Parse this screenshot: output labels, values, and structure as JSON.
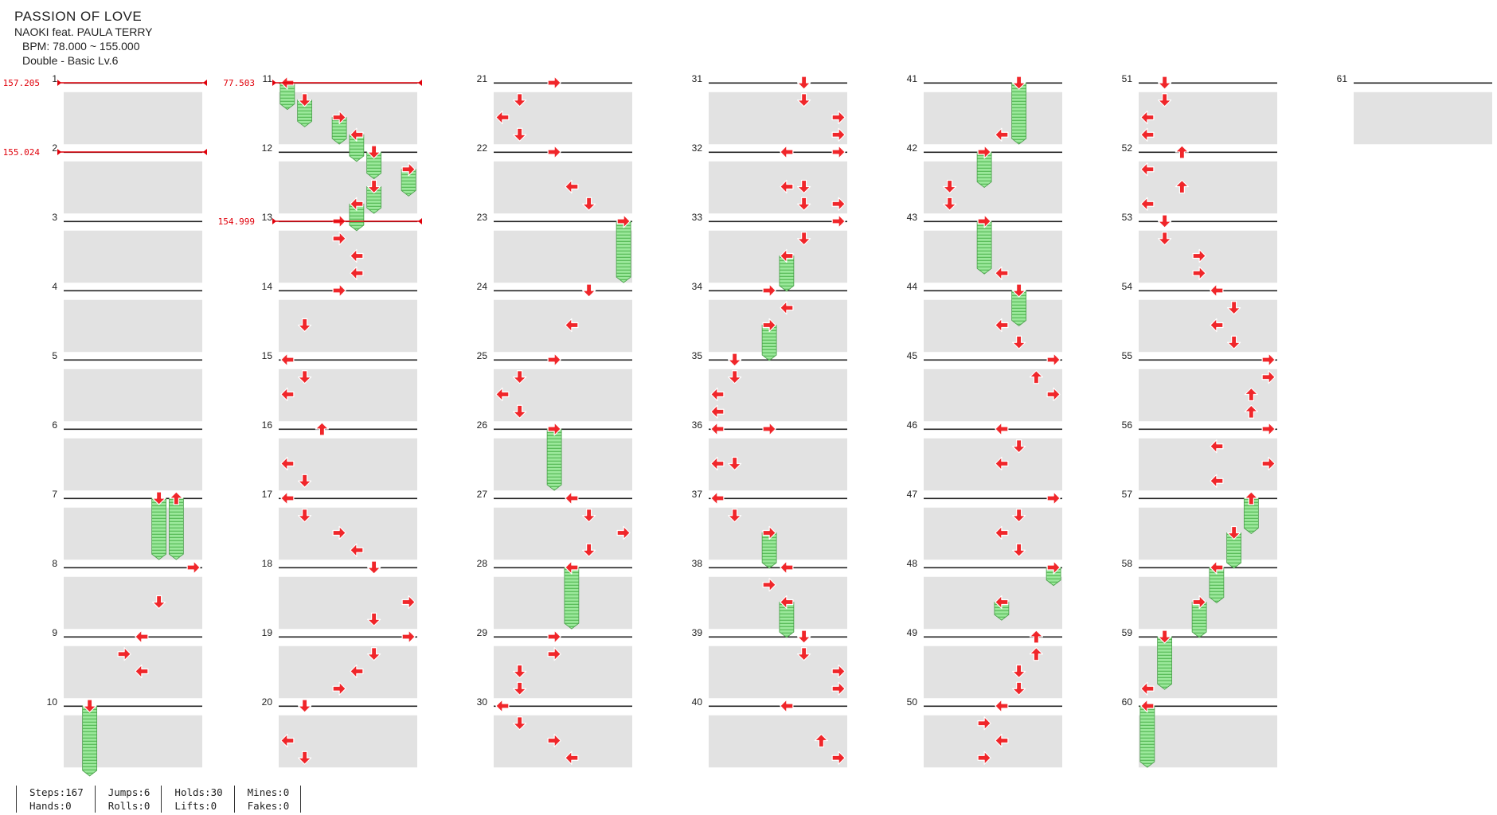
{
  "song": {
    "title": "PASSION OF LOVE",
    "artist": "NAOKI feat. PAULA TERRY",
    "bpm": "BPM: 78.000 ~ 155.000",
    "chart": "Double - Basic  Lv.6"
  },
  "colors": {
    "arrow": "#f0262a",
    "hold": "#8ee88e",
    "bpm_line": "#e0000a",
    "lane_shade": "#e2e2e2"
  },
  "bpm_changes": [
    {
      "measure": 1,
      "label": "157.205"
    },
    {
      "measure": 2,
      "label": "155.024"
    },
    {
      "measure": 11,
      "label": "77.503"
    },
    {
      "measure": 13,
      "label": "154.999"
    }
  ],
  "notes": [
    {
      "m": 7,
      "r": 0,
      "c": 5,
      "d": "D",
      "len": 0.875
    },
    {
      "m": 7,
      "r": 0,
      "c": 6,
      "d": "U",
      "len": 0.875
    },
    {
      "m": 8,
      "r": 0,
      "c": 7,
      "d": "R"
    },
    {
      "m": 8,
      "r": 0.5,
      "c": 5,
      "d": "D"
    },
    {
      "m": 9,
      "r": 0,
      "c": 4,
      "d": "L"
    },
    {
      "m": 9,
      "r": 0.25,
      "c": 3,
      "d": "R"
    },
    {
      "m": 9,
      "r": 0.5,
      "c": 4,
      "d": "L"
    },
    {
      "m": 10,
      "r": 0,
      "c": 1,
      "d": "D",
      "len": 1
    },
    {
      "m": 11,
      "r": 0,
      "c": 0,
      "d": "L",
      "len": 0.375
    },
    {
      "m": 11,
      "r": 0.25,
      "c": 1,
      "d": "D",
      "len": 0.375
    },
    {
      "m": 11,
      "r": 0.5,
      "c": 3,
      "d": "R",
      "len": 0.375
    },
    {
      "m": 11,
      "r": 0.75,
      "c": 4,
      "d": "L",
      "len": 0.375
    },
    {
      "m": 12,
      "r": 0,
      "c": 5,
      "d": "D",
      "len": 0.375
    },
    {
      "m": 12,
      "r": 0.25,
      "c": 7,
      "d": "R",
      "len": 0.375
    },
    {
      "m": 12,
      "r": 0.5,
      "c": 5,
      "d": "D",
      "len": 0.375
    },
    {
      "m": 12,
      "r": 0.75,
      "c": 4,
      "d": "L",
      "len": 0.375
    },
    {
      "m": 13,
      "r": 0,
      "c": 3,
      "d": "R"
    },
    {
      "m": 13,
      "r": 0.25,
      "c": 3,
      "d": "R"
    },
    {
      "m": 13,
      "r": 0.5,
      "c": 4,
      "d": "L"
    },
    {
      "m": 13,
      "r": 0.75,
      "c": 4,
      "d": "L"
    },
    {
      "m": 14,
      "r": 0,
      "c": 3,
      "d": "R"
    },
    {
      "m": 14,
      "r": 0.5,
      "c": 1,
      "d": "D"
    },
    {
      "m": 15,
      "r": 0,
      "c": 0,
      "d": "L"
    },
    {
      "m": 15,
      "r": 0.25,
      "c": 1,
      "d": "D"
    },
    {
      "m": 15,
      "r": 0.5,
      "c": 0,
      "d": "L"
    },
    {
      "m": 16,
      "r": 0,
      "c": 2,
      "d": "U"
    },
    {
      "m": 16,
      "r": 0.5,
      "c": 0,
      "d": "L"
    },
    {
      "m": 16,
      "r": 0.75,
      "c": 1,
      "d": "D"
    },
    {
      "m": 17,
      "r": 0,
      "c": 0,
      "d": "L"
    },
    {
      "m": 17,
      "r": 0.25,
      "c": 1,
      "d": "D"
    },
    {
      "m": 17,
      "r": 0.5,
      "c": 3,
      "d": "R"
    },
    {
      "m": 17,
      "r": 0.75,
      "c": 4,
      "d": "L"
    },
    {
      "m": 18,
      "r": 0,
      "c": 5,
      "d": "D"
    },
    {
      "m": 18,
      "r": 0.5,
      "c": 7,
      "d": "R"
    },
    {
      "m": 18,
      "r": 0.75,
      "c": 5,
      "d": "D"
    },
    {
      "m": 19,
      "r": 0,
      "c": 7,
      "d": "R"
    },
    {
      "m": 19,
      "r": 0.25,
      "c": 5,
      "d": "D"
    },
    {
      "m": 19,
      "r": 0.5,
      "c": 4,
      "d": "L"
    },
    {
      "m": 19,
      "r": 0.75,
      "c": 3,
      "d": "R"
    },
    {
      "m": 20,
      "r": 0,
      "c": 1,
      "d": "D"
    },
    {
      "m": 20,
      "r": 0.5,
      "c": 0,
      "d": "L"
    },
    {
      "m": 20,
      "r": 0.75,
      "c": 1,
      "d": "D"
    },
    {
      "m": 21,
      "r": 0,
      "c": 3,
      "d": "R"
    },
    {
      "m": 21,
      "r": 0.25,
      "c": 1,
      "d": "D"
    },
    {
      "m": 21,
      "r": 0.5,
      "c": 0,
      "d": "L"
    },
    {
      "m": 21,
      "r": 0.75,
      "c": 1,
      "d": "D"
    },
    {
      "m": 22,
      "r": 0,
      "c": 3,
      "d": "R"
    },
    {
      "m": 22,
      "r": 0.5,
      "c": 4,
      "d": "L"
    },
    {
      "m": 22,
      "r": 0.75,
      "c": 5,
      "d": "D"
    },
    {
      "m": 23,
      "r": 0,
      "c": 7,
      "d": "R",
      "len": 0.875
    },
    {
      "m": 24,
      "r": 0,
      "c": 5,
      "d": "D"
    },
    {
      "m": 24,
      "r": 0.5,
      "c": 4,
      "d": "L"
    },
    {
      "m": 25,
      "r": 0,
      "c": 3,
      "d": "R"
    },
    {
      "m": 25,
      "r": 0.25,
      "c": 1,
      "d": "D"
    },
    {
      "m": 25,
      "r": 0.5,
      "c": 0,
      "d": "L"
    },
    {
      "m": 25,
      "r": 0.75,
      "c": 1,
      "d": "D"
    },
    {
      "m": 26,
      "r": 0,
      "c": 3,
      "d": "R",
      "len": 0.875
    },
    {
      "m": 27,
      "r": 0,
      "c": 4,
      "d": "L"
    },
    {
      "m": 27,
      "r": 0.25,
      "c": 5,
      "d": "D"
    },
    {
      "m": 27,
      "r": 0.5,
      "c": 7,
      "d": "R"
    },
    {
      "m": 27,
      "r": 0.75,
      "c": 5,
      "d": "D"
    },
    {
      "m": 28,
      "r": 0,
      "c": 4,
      "d": "L",
      "len": 0.875
    },
    {
      "m": 29,
      "r": 0,
      "c": 3,
      "d": "R"
    },
    {
      "m": 29,
      "r": 0.25,
      "c": 3,
      "d": "R"
    },
    {
      "m": 29,
      "r": 0.5,
      "c": 1,
      "d": "D"
    },
    {
      "m": 29,
      "r": 0.75,
      "c": 1,
      "d": "D"
    },
    {
      "m": 30,
      "r": 0,
      "c": 0,
      "d": "L"
    },
    {
      "m": 30,
      "r": 0.25,
      "c": 1,
      "d": "D"
    },
    {
      "m": 30,
      "r": 0.5,
      "c": 3,
      "d": "R"
    },
    {
      "m": 30,
      "r": 0.75,
      "c": 4,
      "d": "L"
    },
    {
      "m": 31,
      "r": 0,
      "c": 5,
      "d": "D"
    },
    {
      "m": 31,
      "r": 0.25,
      "c": 5,
      "d": "D"
    },
    {
      "m": 31,
      "r": 0.5,
      "c": 7,
      "d": "R"
    },
    {
      "m": 31,
      "r": 0.75,
      "c": 7,
      "d": "R"
    },
    {
      "m": 32,
      "r": 0,
      "c": 4,
      "d": "L"
    },
    {
      "m": 32,
      "r": 0,
      "c": 7,
      "d": "R"
    },
    {
      "m": 32,
      "r": 0.5,
      "c": 4,
      "d": "L"
    },
    {
      "m": 32,
      "r": 0.5,
      "c": 5,
      "d": "D"
    },
    {
      "m": 32,
      "r": 0.75,
      "c": 5,
      "d": "D"
    },
    {
      "m": 32,
      "r": 0.75,
      "c": 7,
      "d": "R"
    },
    {
      "m": 33,
      "r": 0,
      "c": 7,
      "d": "R"
    },
    {
      "m": 33,
      "r": 0.25,
      "c": 5,
      "d": "D"
    },
    {
      "m": 33,
      "r": 0.5,
      "c": 4,
      "d": "L",
      "len": 0.5
    },
    {
      "m": 34,
      "r": 0,
      "c": 3,
      "d": "R"
    },
    {
      "m": 34,
      "r": 0.25,
      "c": 4,
      "d": "L"
    },
    {
      "m": 34,
      "r": 0.5,
      "c": 3,
      "d": "R",
      "len": 0.5
    },
    {
      "m": 35,
      "r": 0,
      "c": 1,
      "d": "D"
    },
    {
      "m": 35,
      "r": 0.25,
      "c": 1,
      "d": "D"
    },
    {
      "m": 35,
      "r": 0.5,
      "c": 0,
      "d": "L"
    },
    {
      "m": 35,
      "r": 0.75,
      "c": 0,
      "d": "L"
    },
    {
      "m": 36,
      "r": 0,
      "c": 0,
      "d": "L"
    },
    {
      "m": 36,
      "r": 0,
      "c": 3,
      "d": "R"
    },
    {
      "m": 36,
      "r": 0.5,
      "c": 0,
      "d": "L"
    },
    {
      "m": 36,
      "r": 0.5,
      "c": 1,
      "d": "D"
    },
    {
      "m": 37,
      "r": 0,
      "c": 0,
      "d": "L"
    },
    {
      "m": 37,
      "r": 0.25,
      "c": 1,
      "d": "D"
    },
    {
      "m": 37,
      "r": 0.5,
      "c": 3,
      "d": "R",
      "len": 0.5
    },
    {
      "m": 38,
      "r": 0,
      "c": 4,
      "d": "L"
    },
    {
      "m": 38,
      "r": 0.25,
      "c": 3,
      "d": "R"
    },
    {
      "m": 38,
      "r": 0.5,
      "c": 4,
      "d": "L",
      "len": 0.5
    },
    {
      "m": 39,
      "r": 0,
      "c": 5,
      "d": "D"
    },
    {
      "m": 39,
      "r": 0.25,
      "c": 5,
      "d": "D"
    },
    {
      "m": 39,
      "r": 0.5,
      "c": 7,
      "d": "R"
    },
    {
      "m": 39,
      "r": 0.75,
      "c": 7,
      "d": "R"
    },
    {
      "m": 40,
      "r": 0,
      "c": 4,
      "d": "L"
    },
    {
      "m": 40,
      "r": 0.5,
      "c": 6,
      "d": "U"
    },
    {
      "m": 40,
      "r": 0.75,
      "c": 7,
      "d": "R"
    },
    {
      "m": 41,
      "r": 0,
      "c": 5,
      "d": "D",
      "len": 0.875
    },
    {
      "m": 41,
      "r": 0.75,
      "c": 4,
      "d": "L"
    },
    {
      "m": 42,
      "r": 0,
      "c": 3,
      "d": "R",
      "len": 0.5
    },
    {
      "m": 42,
      "r": 0.5,
      "c": 1,
      "d": "D"
    },
    {
      "m": 42,
      "r": 0.75,
      "c": 1,
      "d": "D"
    },
    {
      "m": 43,
      "r": 0,
      "c": 3,
      "d": "R",
      "len": 0.75
    },
    {
      "m": 43,
      "r": 0.75,
      "c": 4,
      "d": "L"
    },
    {
      "m": 44,
      "r": 0,
      "c": 5,
      "d": "D",
      "len": 0.5
    },
    {
      "m": 44,
      "r": 0.5,
      "c": 4,
      "d": "L"
    },
    {
      "m": 44,
      "r": 0.75,
      "c": 5,
      "d": "D"
    },
    {
      "m": 45,
      "r": 0,
      "c": 7,
      "d": "R"
    },
    {
      "m": 45,
      "r": 0.25,
      "c": 6,
      "d": "U"
    },
    {
      "m": 45,
      "r": 0.5,
      "c": 7,
      "d": "R"
    },
    {
      "m": 46,
      "r": 0,
      "c": 4,
      "d": "L"
    },
    {
      "m": 46,
      "r": 0.25,
      "c": 5,
      "d": "D"
    },
    {
      "m": 46,
      "r": 0.5,
      "c": 4,
      "d": "L"
    },
    {
      "m": 47,
      "r": 0,
      "c": 7,
      "d": "R"
    },
    {
      "m": 47,
      "r": 0.25,
      "c": 5,
      "d": "D"
    },
    {
      "m": 47,
      "r": 0.5,
      "c": 4,
      "d": "L"
    },
    {
      "m": 47,
      "r": 0.75,
      "c": 5,
      "d": "D"
    },
    {
      "m": 48,
      "r": 0,
      "c": 7,
      "d": "R",
      "len": 0.25
    },
    {
      "m": 48,
      "r": 0.5,
      "c": 4,
      "d": "L",
      "len": 0.25
    },
    {
      "m": 49,
      "r": 0,
      "c": 6,
      "d": "U"
    },
    {
      "m": 49,
      "r": 0.25,
      "c": 6,
      "d": "U"
    },
    {
      "m": 49,
      "r": 0.5,
      "c": 5,
      "d": "D"
    },
    {
      "m": 49,
      "r": 0.75,
      "c": 5,
      "d": "D"
    },
    {
      "m": 50,
      "r": 0,
      "c": 4,
      "d": "L"
    },
    {
      "m": 50,
      "r": 0.25,
      "c": 3,
      "d": "R"
    },
    {
      "m": 50,
      "r": 0.5,
      "c": 4,
      "d": "L"
    },
    {
      "m": 50,
      "r": 0.75,
      "c": 3,
      "d": "R"
    },
    {
      "m": 51,
      "r": 0,
      "c": 1,
      "d": "D"
    },
    {
      "m": 51,
      "r": 0.25,
      "c": 1,
      "d": "D"
    },
    {
      "m": 51,
      "r": 0.5,
      "c": 0,
      "d": "L"
    },
    {
      "m": 51,
      "r": 0.75,
      "c": 0,
      "d": "L"
    },
    {
      "m": 52,
      "r": 0,
      "c": 2,
      "d": "U"
    },
    {
      "m": 52,
      "r": 0.25,
      "c": 0,
      "d": "L"
    },
    {
      "m": 52,
      "r": 0.5,
      "c": 2,
      "d": "U"
    },
    {
      "m": 52,
      "r": 0.75,
      "c": 0,
      "d": "L"
    },
    {
      "m": 53,
      "r": 0,
      "c": 1,
      "d": "D"
    },
    {
      "m": 53,
      "r": 0.25,
      "c": 1,
      "d": "D"
    },
    {
      "m": 53,
      "r": 0.5,
      "c": 3,
      "d": "R"
    },
    {
      "m": 53,
      "r": 0.75,
      "c": 3,
      "d": "R"
    },
    {
      "m": 54,
      "r": 0,
      "c": 4,
      "d": "L"
    },
    {
      "m": 54,
      "r": 0.25,
      "c": 5,
      "d": "D"
    },
    {
      "m": 54,
      "r": 0.5,
      "c": 4,
      "d": "L"
    },
    {
      "m": 54,
      "r": 0.75,
      "c": 5,
      "d": "D"
    },
    {
      "m": 55,
      "r": 0,
      "c": 7,
      "d": "R"
    },
    {
      "m": 55,
      "r": 0.25,
      "c": 7,
      "d": "R"
    },
    {
      "m": 55,
      "r": 0.5,
      "c": 6,
      "d": "U"
    },
    {
      "m": 55,
      "r": 0.75,
      "c": 6,
      "d": "U"
    },
    {
      "m": 56,
      "r": 0,
      "c": 7,
      "d": "R"
    },
    {
      "m": 56,
      "r": 0.25,
      "c": 4,
      "d": "L"
    },
    {
      "m": 56,
      "r": 0.5,
      "c": 7,
      "d": "R"
    },
    {
      "m": 56,
      "r": 0.75,
      "c": 4,
      "d": "L"
    },
    {
      "m": 57,
      "r": 0,
      "c": 6,
      "d": "U",
      "len": 0.5
    },
    {
      "m": 57,
      "r": 0.5,
      "c": 5,
      "d": "D",
      "len": 0.5
    },
    {
      "m": 58,
      "r": 0,
      "c": 4,
      "d": "L",
      "len": 0.5
    },
    {
      "m": 58,
      "r": 0.5,
      "c": 3,
      "d": "R",
      "len": 0.5
    },
    {
      "m": 59,
      "r": 0,
      "c": 1,
      "d": "D",
      "len": 0.75
    },
    {
      "m": 59,
      "r": 0.75,
      "c": 0,
      "d": "L"
    },
    {
      "m": 60,
      "r": 0,
      "c": 0,
      "d": "L",
      "len": 0.875
    }
  ],
  "stats": {
    "steps": "Steps:167",
    "hands": "Hands:0",
    "jumps": "Jumps:6",
    "rolls": "Rolls:0",
    "holds": "Holds:30",
    "lifts": "Lifts:0",
    "mines": "Mines:0",
    "fakes": "Fakes:0"
  }
}
